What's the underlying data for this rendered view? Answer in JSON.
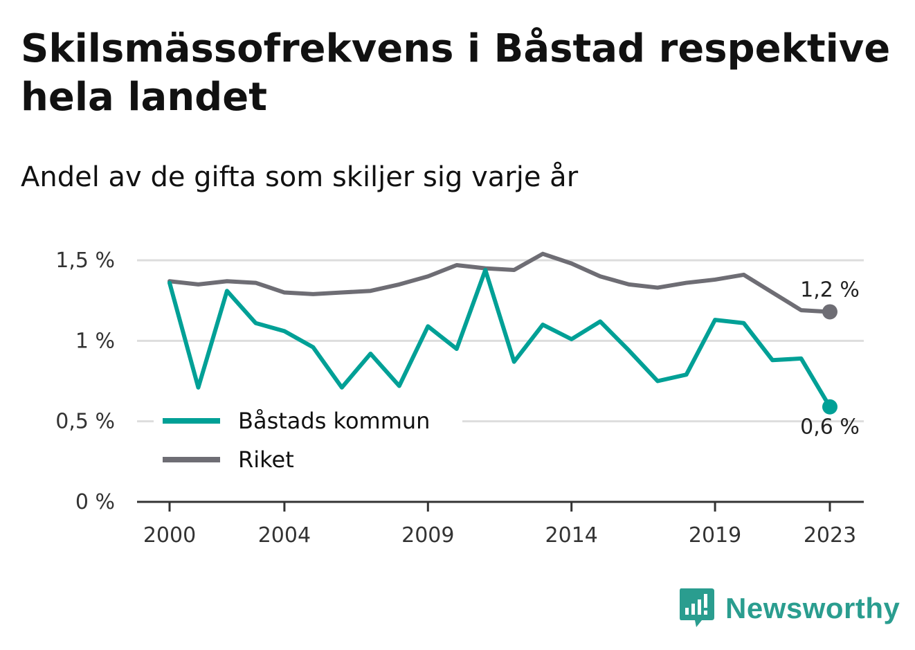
{
  "title": "Skilsmässofrekvens i Båstad respektive hela landet",
  "subtitle": "Andel av de gifta som skiljer sig varje år",
  "brand": {
    "name": "Newsworthy",
    "icon": "bar-chart-speech-icon",
    "color": "#2a9d8f"
  },
  "chart_data": {
    "type": "line",
    "x": [
      2000,
      2001,
      2002,
      2003,
      2004,
      2005,
      2006,
      2007,
      2008,
      2009,
      2010,
      2011,
      2012,
      2013,
      2014,
      2015,
      2016,
      2017,
      2018,
      2019,
      2020,
      2021,
      2022,
      2023
    ],
    "xticks": [
      2000,
      2004,
      2009,
      2014,
      2019,
      2023
    ],
    "xtick_labels": [
      "2000",
      "2004",
      "2009",
      "2014",
      "2019",
      "2023"
    ],
    "ylim": [
      0,
      1.5
    ],
    "yticks": [
      0,
      0.5,
      1,
      1.5
    ],
    "ytick_labels": [
      "0 %",
      "0,5 %",
      "1 %",
      "1,5 %"
    ],
    "grid": true,
    "legend_position": "bottom-left",
    "series": [
      {
        "name": "Båstads kommun",
        "color": "#00a096",
        "values": [
          1.36,
          0.71,
          1.31,
          1.11,
          1.06,
          0.96,
          0.71,
          0.92,
          0.72,
          1.09,
          0.95,
          1.44,
          0.87,
          1.1,
          1.01,
          1.12,
          0.94,
          0.75,
          0.79,
          1.13,
          1.11,
          0.88,
          0.89,
          0.59
        ],
        "end_label": "0,6 %"
      },
      {
        "name": "Riket",
        "color": "#6e6d74",
        "values": [
          1.37,
          1.35,
          1.37,
          1.36,
          1.3,
          1.29,
          1.3,
          1.31,
          1.35,
          1.4,
          1.47,
          1.45,
          1.44,
          1.54,
          1.48,
          1.4,
          1.35,
          1.33,
          1.36,
          1.38,
          1.41,
          1.3,
          1.19,
          1.18
        ],
        "end_label": "1,2 %"
      }
    ]
  }
}
